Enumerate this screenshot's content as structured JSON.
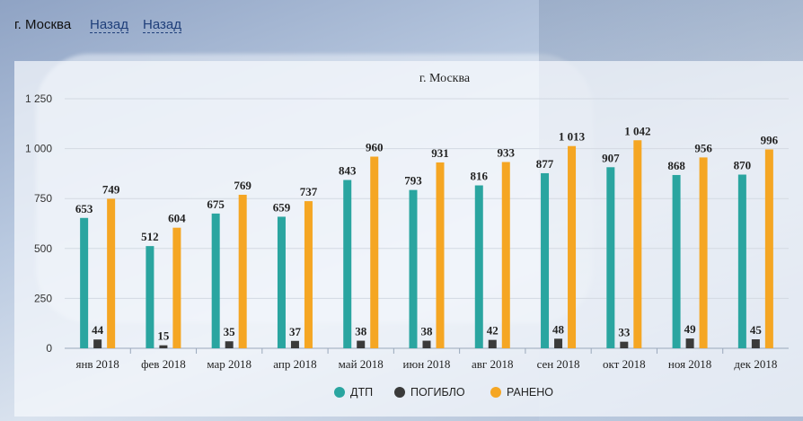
{
  "header": {
    "city": "г. Москва",
    "back_links": [
      "Назад",
      "Назад"
    ]
  },
  "chart_data": {
    "type": "bar",
    "title": "г. Москва",
    "categories": [
      "янв 2018",
      "фев 2018",
      "мар 2018",
      "апр 2018",
      "май 2018",
      "июн 2018",
      "авг 2018",
      "сен 2018",
      "окт 2018",
      "ноя 2018",
      "дек 2018"
    ],
    "series": [
      {
        "name": "ДТП",
        "color": "#2aa5a0",
        "values": [
          653,
          512,
          675,
          659,
          843,
          793,
          816,
          877,
          907,
          868,
          870
        ],
        "labels": [
          "653",
          "512",
          "675",
          "659",
          "843",
          "793",
          "816",
          "877",
          "907",
          "868",
          "870"
        ]
      },
      {
        "name": "ПОГИБЛО",
        "color": "#3a3a3a",
        "values": [
          44,
          15,
          35,
          37,
          38,
          38,
          42,
          48,
          33,
          49,
          45
        ],
        "labels": [
          "44",
          "15",
          "35",
          "37",
          "38",
          "38",
          "42",
          "48",
          "33",
          "49",
          "45"
        ]
      },
      {
        "name": "РАНЕНО",
        "color": "#f5a623",
        "values": [
          749,
          604,
          769,
          737,
          960,
          931,
          933,
          1013,
          1042,
          956,
          996
        ],
        "labels": [
          "749",
          "604",
          "769",
          "737",
          "960",
          "931",
          "933",
          "1 013",
          "1 042",
          "956",
          "996"
        ]
      }
    ],
    "yticks": [
      "0",
      "250",
      "500",
      "750",
      "1 000",
      "1 250"
    ],
    "ylim": [
      0,
      1250
    ],
    "grid": true,
    "legend": "bottom"
  }
}
